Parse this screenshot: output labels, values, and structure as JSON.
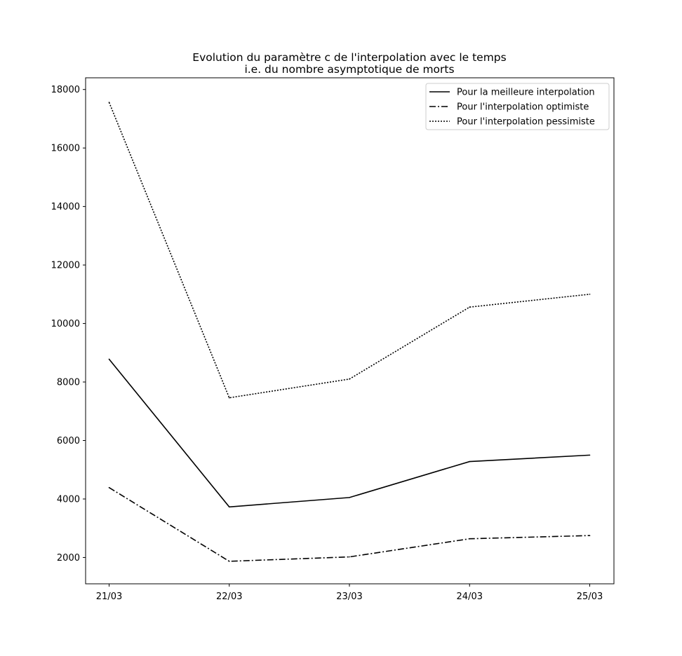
{
  "chart_data": {
    "type": "line",
    "title": "Evolution du paramètre c de l'interpolation avec le temps",
    "subtitle": "i.e. du nombre asymptotique de morts",
    "xlabel": "",
    "ylabel": "",
    "categories": [
      "21/03",
      "22/03",
      "23/03",
      "24/03",
      "25/03"
    ],
    "ylim": [
      1100,
      18400
    ],
    "yticks": [
      2000,
      4000,
      6000,
      8000,
      10000,
      12000,
      14000,
      16000,
      18000
    ],
    "grid": false,
    "legend_position": "top-right",
    "series": [
      {
        "name": "Pour la meilleure interpolation",
        "style": "solid",
        "color": "#000000",
        "values": [
          8780,
          3730,
          4050,
          5280,
          5500
        ]
      },
      {
        "name": "Pour l'interpolation optimiste",
        "style": "dashdot",
        "color": "#000000",
        "values": [
          4390,
          1870,
          2020,
          2640,
          2750
        ]
      },
      {
        "name": "Pour l'interpolation pessimiste",
        "style": "dotted",
        "color": "#000000",
        "values": [
          17560,
          7460,
          8100,
          10560,
          11000
        ]
      }
    ]
  }
}
